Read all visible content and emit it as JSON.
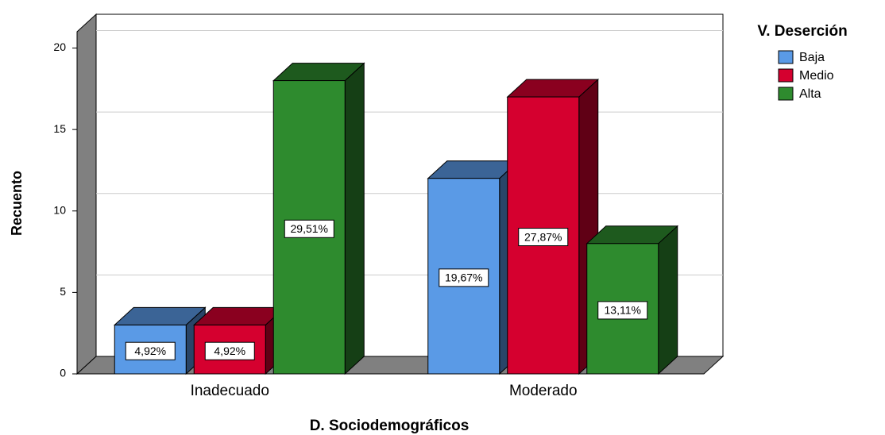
{
  "chart_data": {
    "type": "bar3d",
    "xlabel": "D. Sociodemográficos",
    "ylabel": "Recuento",
    "legend_title": "V. Deserción",
    "categories": [
      "Inadecuado",
      "Moderado"
    ],
    "series": [
      {
        "name": "Baja",
        "color": "#5a9ae6",
        "values": [
          3,
          12
        ],
        "labels": [
          "4,92%",
          "19,67%"
        ]
      },
      {
        "name": "Medio",
        "color": "#d5002f",
        "values": [
          3,
          17
        ],
        "labels": [
          "4,92%",
          "27,87%"
        ]
      },
      {
        "name": "Alta",
        "color": "#2e8b2e",
        "values": [
          18,
          8
        ],
        "labels": [
          "29,51%",
          "13,11%"
        ]
      }
    ],
    "ylim": [
      0,
      21
    ],
    "yticks": [
      0,
      5,
      10,
      15,
      20
    ],
    "grid": true,
    "legend": "right"
  }
}
